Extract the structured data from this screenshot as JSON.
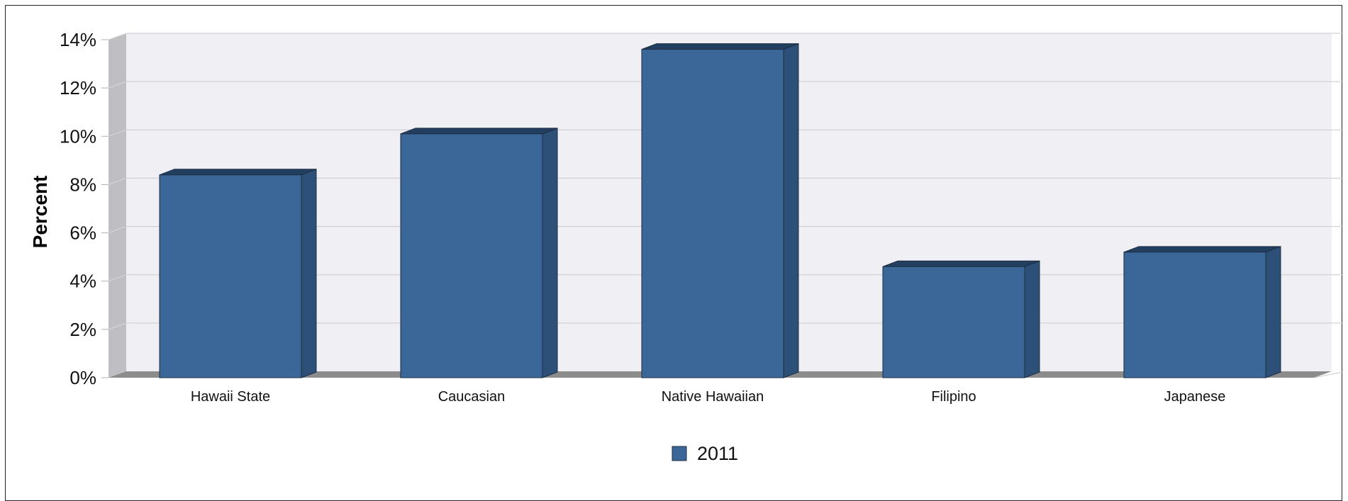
{
  "chart_data": {
    "type": "bar",
    "title": "",
    "xlabel": "",
    "ylabel": "Percent",
    "categories": [
      "Hawaii State",
      "Caucasian",
      "Native Hawaiian",
      "Filipino",
      "Japanese"
    ],
    "series": [
      {
        "name": "2011",
        "values": [
          8.4,
          10.1,
          13.6,
          4.6,
          5.2
        ]
      }
    ],
    "yticks": [
      "0%",
      "2%",
      "4%",
      "6%",
      "8%",
      "10%",
      "12%",
      "14%"
    ],
    "ylim": [
      0,
      14
    ],
    "grid": true,
    "legend_position": "bottom",
    "colors": {
      "bar_front": "#3A6698",
      "bar_side": "#2D5078",
      "bar_top": "#233F60",
      "plot_bg": "#EFEFF4",
      "floor": "#8C8C8C",
      "left_wall": "#BFBFC3",
      "gridline": "#C9C9CF"
    }
  }
}
